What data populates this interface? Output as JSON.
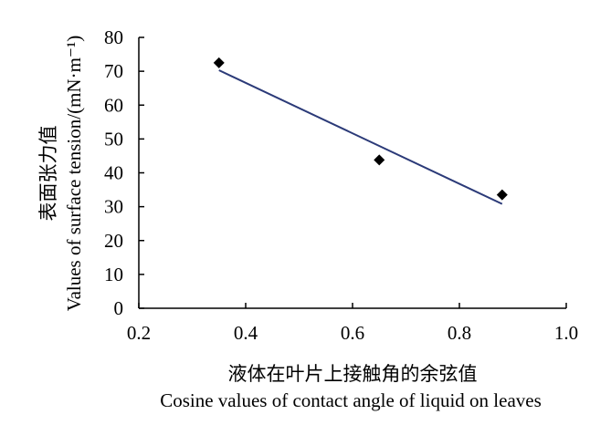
{
  "chart_data": {
    "type": "scatter",
    "title": "",
    "xlabel_zh": "液体在叶片上接触角的余弦值",
    "xlabel_en": "Cosine values of contact angle of liquid on leaves",
    "ylabel_zh": "表面张力值",
    "ylabel_en": "Values of surface tension/(mN·m⁻¹)",
    "xlim": [
      0.2,
      1.0
    ],
    "ylim": [
      0,
      80
    ],
    "xticks": [
      "0.2",
      "0.4",
      "0.6",
      "0.8",
      "1.0"
    ],
    "yticks": [
      "0",
      "10",
      "20",
      "30",
      "40",
      "50",
      "60",
      "70",
      "80"
    ],
    "grid": false,
    "legend": "none",
    "marker": "diamond",
    "marker_color": "#000000",
    "trendline_color": "#2b3a78",
    "points": [
      {
        "x": 0.35,
        "y": 72.5
      },
      {
        "x": 0.65,
        "y": 43.8
      },
      {
        "x": 0.88,
        "y": 33.5
      }
    ],
    "trendline": {
      "x": [
        0.35,
        0.88
      ],
      "y": [
        70.3,
        30.8
      ]
    }
  }
}
